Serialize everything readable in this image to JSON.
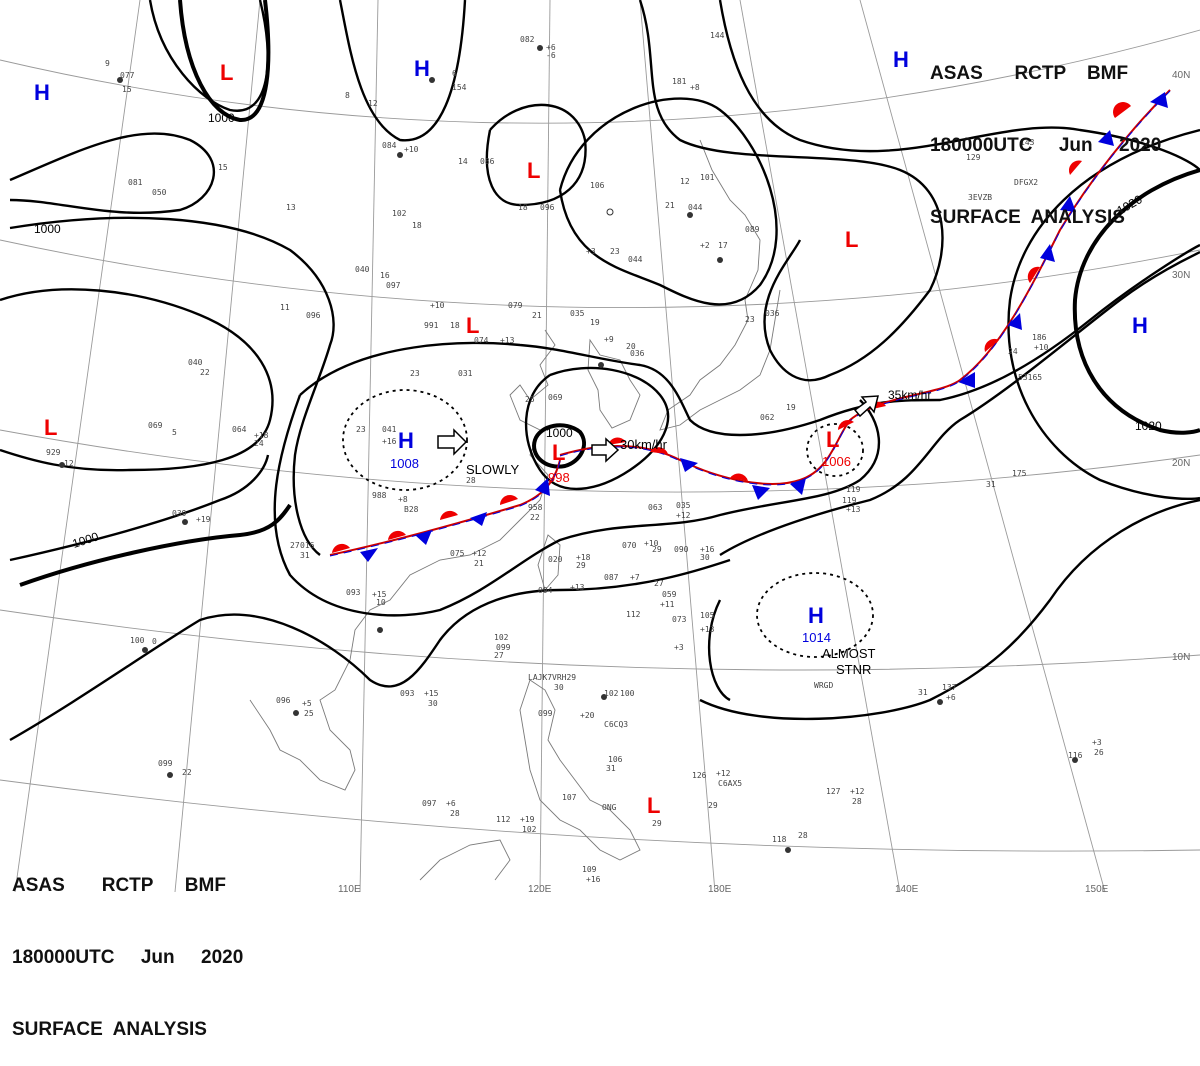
{
  "header_top_right": {
    "line1": "ASAS      RCTP    BMF",
    "line2": "180000UTC     Jun     2020",
    "line3": "SURFACE  ANALYSIS"
  },
  "header_bottom_left": {
    "line1": "ASAS       RCTP      BMF",
    "line2": "180000UTC     Jun     2020",
    "line3": "SURFACE  ANALYSIS"
  },
  "longitude_labels": [
    "110E",
    "120E",
    "130E",
    "140E",
    "150E"
  ],
  "latitude_labels": [
    "40N",
    "30N",
    "20N",
    "10N"
  ],
  "isobar_labels": [
    "1000",
    "1000",
    "1000",
    "1000",
    "1020",
    "1020"
  ],
  "pressure_systems": [
    {
      "type": "H",
      "value": ""
    },
    {
      "type": "L",
      "value": ""
    },
    {
      "type": "H",
      "value": ""
    },
    {
      "type": "H",
      "value": ""
    },
    {
      "type": "L",
      "value": ""
    },
    {
      "type": "L",
      "value": ""
    },
    {
      "type": "L",
      "value": ""
    },
    {
      "type": "L",
      "value": ""
    },
    {
      "type": "H",
      "value": "1008"
    },
    {
      "type": "L",
      "value": "998"
    },
    {
      "type": "L",
      "value": "1006"
    },
    {
      "type": "H",
      "value": ""
    },
    {
      "type": "H",
      "value": "1014"
    },
    {
      "type": "L",
      "value": ""
    }
  ],
  "motion_labels": [
    "SLOWLY",
    "30km/hr",
    "35km/hr",
    "ALMOST",
    "STNR"
  ],
  "colors": {
    "high": "#0000dd",
    "low": "#ee0000",
    "cold_front": "#0000dd",
    "warm_front": "#ee0000",
    "isobar": "#000000",
    "grid": "#9a9a9a"
  },
  "station_labels": [
    "082",
    "+6",
    "-6",
    "9",
    "077",
    "15",
    "6",
    "154",
    "8",
    "12",
    "084",
    "+10",
    "14",
    "086",
    "15",
    "081",
    "050",
    "106",
    "18",
    "096",
    "21",
    "044",
    "13",
    "102",
    "18",
    "040",
    "16",
    "097",
    "+3",
    "23",
    "044",
    "+2",
    "17",
    "089",
    "+10",
    "11",
    "096",
    "079",
    "21",
    "035",
    "19",
    "991",
    "18",
    "074",
    "+13",
    "23",
    "036",
    "+9",
    "20",
    "036",
    "23",
    "031",
    "25",
    "069",
    "23",
    "041",
    "+16",
    "062",
    "19",
    "040",
    "22",
    "064",
    "+18",
    "24",
    "069",
    "5",
    "929",
    "12",
    "988",
    "+8",
    "B28",
    "28",
    "958",
    "22",
    "039",
    "+19",
    "063",
    "035",
    "+12",
    "27",
    "016",
    "31",
    "075",
    "+12",
    "21",
    "020",
    "+18",
    "29",
    "070",
    "+10",
    "29",
    "090",
    "+16",
    "30",
    "093",
    "+15",
    "10",
    "087",
    "+7",
    "27",
    "059",
    "+11",
    "094",
    "+13",
    "100",
    "0",
    "102",
    "099",
    "27",
    "073",
    "105",
    "+13",
    "112",
    "+3",
    "LAJK7",
    "VRH29",
    "30",
    "096",
    "+5",
    "25",
    "093",
    "+15",
    "30",
    "099",
    "+20",
    "102",
    "100",
    "C6CQ3",
    "099",
    "22",
    "106",
    "31",
    "097",
    "+6",
    "28",
    "112",
    "+19",
    "102",
    "107",
    "ONG",
    "29",
    "126",
    "+12",
    "C6AX5",
    "29",
    "127",
    "+12",
    "28",
    "116",
    "+3",
    "26",
    "118",
    "28",
    "109",
    "+16",
    "129",
    "143",
    "3EVZB",
    "DFGX2",
    "24",
    "186",
    "+10",
    "53165",
    "31",
    "175",
    "119",
    "31",
    "137",
    "+6",
    "WRGD",
    "119",
    "+13",
    "181",
    "+8",
    "144",
    "12",
    "101"
  ]
}
